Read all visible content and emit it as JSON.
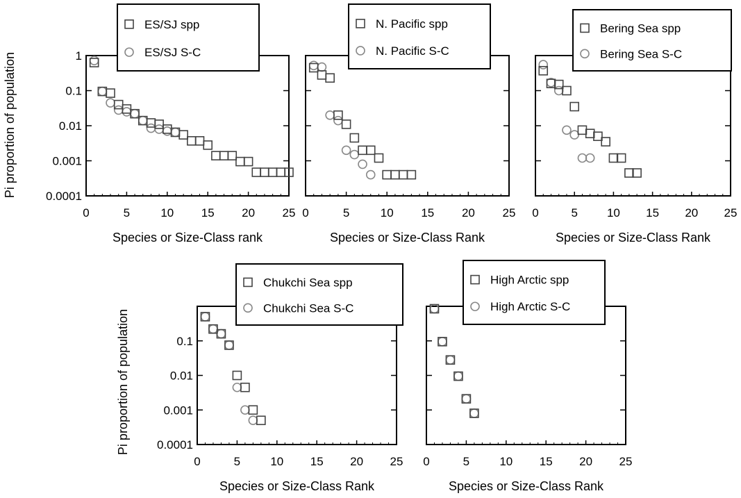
{
  "figure": {
    "y_label": "Pi proportion of population"
  },
  "chart_data": [
    {
      "type": "scatter",
      "xlabel": "Species or Size-Class rank",
      "ylabel": "Pi proportion of population",
      "x_scale": "linear",
      "y_scale": "log",
      "xlim": [
        0,
        25
      ],
      "ylim": [
        0.0001,
        1
      ],
      "x_ticks": [
        "0",
        "5",
        "10",
        "15",
        "20",
        "25"
      ],
      "y_ticks": [
        "0.0001",
        "0.001",
        "0.01",
        "0.1",
        "1"
      ],
      "legend_position": "top-center",
      "series": [
        {
          "name": "ES/SJ spp",
          "marker": "square",
          "color": "#444444",
          "x": [
            1,
            2,
            3,
            4,
            5,
            6,
            7,
            8,
            9,
            10,
            11,
            12,
            13,
            14,
            15,
            16,
            17,
            18,
            19,
            20,
            21,
            22,
            23,
            24,
            25
          ],
          "y": [
            0.63,
            0.095,
            0.085,
            0.04,
            0.03,
            0.022,
            0.014,
            0.012,
            0.011,
            0.008,
            0.0065,
            0.0055,
            0.0037,
            0.0037,
            0.0028,
            0.0014,
            0.0014,
            0.0014,
            0.00095,
            0.00095,
            0.00047,
            0.00047,
            0.00047,
            0.00047,
            0.00047
          ]
        },
        {
          "name": "ES/SJ S-C",
          "marker": "circle",
          "color": "#888888",
          "x": [
            1,
            2,
            3,
            4,
            5,
            6,
            7,
            8,
            9,
            10,
            11
          ],
          "y": [
            0.72,
            0.095,
            0.045,
            0.028,
            0.025,
            0.022,
            0.014,
            0.0085,
            0.008,
            0.007,
            0.0065
          ]
        }
      ]
    },
    {
      "type": "scatter",
      "xlabel": "Species or Size-Class Rank",
      "ylabel": "",
      "x_scale": "linear",
      "y_scale": "log",
      "xlim": [
        0,
        25
      ],
      "ylim": [
        0.0001,
        1
      ],
      "x_ticks": [
        "0",
        "5",
        "10",
        "15",
        "20",
        "25"
      ],
      "y_ticks": [],
      "legend_position": "top-center",
      "series": [
        {
          "name": "N. Pacific spp",
          "marker": "square",
          "color": "#444444",
          "x": [
            1,
            2,
            3,
            4,
            5,
            6,
            7,
            8,
            9,
            10,
            11,
            12,
            13
          ],
          "y": [
            0.45,
            0.28,
            0.23,
            0.02,
            0.011,
            0.0045,
            0.002,
            0.002,
            0.0012,
            0.0004,
            0.0004,
            0.0004,
            0.0004
          ]
        },
        {
          "name": "N. Pacific S-C",
          "marker": "circle",
          "color": "#888888",
          "x": [
            1,
            2,
            3,
            4,
            5,
            6,
            7,
            8
          ],
          "y": [
            0.52,
            0.47,
            0.02,
            0.014,
            0.002,
            0.0015,
            0.0008,
            0.0004
          ]
        }
      ]
    },
    {
      "type": "scatter",
      "xlabel": "Species or Size-Class Rank",
      "ylabel": "",
      "x_scale": "linear",
      "y_scale": "log",
      "xlim": [
        0,
        25
      ],
      "ylim": [
        0.0001,
        1
      ],
      "x_ticks": [
        "0",
        "5",
        "10",
        "15",
        "20",
        "25"
      ],
      "y_ticks": [],
      "legend_position": "top-right",
      "series": [
        {
          "name": "Bering Sea spp",
          "marker": "square",
          "color": "#444444",
          "x": [
            1,
            2,
            3,
            4,
            5,
            6,
            7,
            8,
            9,
            10,
            11,
            12,
            13
          ],
          "y": [
            0.37,
            0.16,
            0.15,
            0.1,
            0.035,
            0.0075,
            0.006,
            0.005,
            0.0035,
            0.0012,
            0.0012,
            0.00045,
            0.00045
          ]
        },
        {
          "name": "Bering Sea S-C",
          "marker": "circle",
          "color": "#888888",
          "x": [
            1,
            2,
            3,
            4,
            5,
            6,
            7
          ],
          "y": [
            0.55,
            0.17,
            0.1,
            0.0075,
            0.0055,
            0.0012,
            0.0012
          ]
        }
      ]
    },
    {
      "type": "scatter",
      "xlabel": "Species or Size-Class Rank",
      "ylabel": "Pi proportion of population",
      "x_scale": "linear",
      "y_scale": "log",
      "xlim": [
        0,
        25
      ],
      "ylim": [
        0.0001,
        1
      ],
      "x_ticks": [
        "0",
        "5",
        "10",
        "15",
        "20",
        "25"
      ],
      "y_ticks": [
        "0.0001",
        "0.001",
        "0.01",
        "0.1"
      ],
      "legend_position": "top-center",
      "series": [
        {
          "name": "Chukchi Sea spp",
          "marker": "square",
          "color": "#444444",
          "x": [
            1,
            2,
            3,
            4,
            5,
            6,
            7,
            8
          ],
          "y": [
            0.5,
            0.22,
            0.16,
            0.075,
            0.01,
            0.0045,
            0.001,
            0.0005
          ]
        },
        {
          "name": "Chukchi Sea S-C",
          "marker": "circle",
          "color": "#888888",
          "x": [
            1,
            2,
            3,
            4,
            5,
            6,
            7
          ],
          "y": [
            0.5,
            0.22,
            0.16,
            0.075,
            0.0045,
            0.001,
            0.0005
          ]
        }
      ]
    },
    {
      "type": "scatter",
      "xlabel": "Species or Size-Class Rank",
      "ylabel": "",
      "x_scale": "linear",
      "y_scale": "log",
      "xlim": [
        0,
        25
      ],
      "ylim": [
        0.0001,
        1
      ],
      "x_ticks": [
        "0",
        "5",
        "10",
        "15",
        "20",
        "25"
      ],
      "y_ticks": [],
      "legend_position": "top-center",
      "series": [
        {
          "name": "High Arctic spp",
          "marker": "square",
          "color": "#444444",
          "x": [
            1,
            2,
            3,
            4,
            5,
            6
          ],
          "y": [
            0.85,
            0.095,
            0.028,
            0.0095,
            0.0021,
            0.0008
          ]
        },
        {
          "name": "High Arctic S-C",
          "marker": "circle",
          "color": "#888888",
          "x": [
            1,
            2,
            3,
            4,
            5,
            6
          ],
          "y": [
            0.85,
            0.095,
            0.028,
            0.0095,
            0.0021,
            0.0008
          ]
        }
      ]
    }
  ]
}
